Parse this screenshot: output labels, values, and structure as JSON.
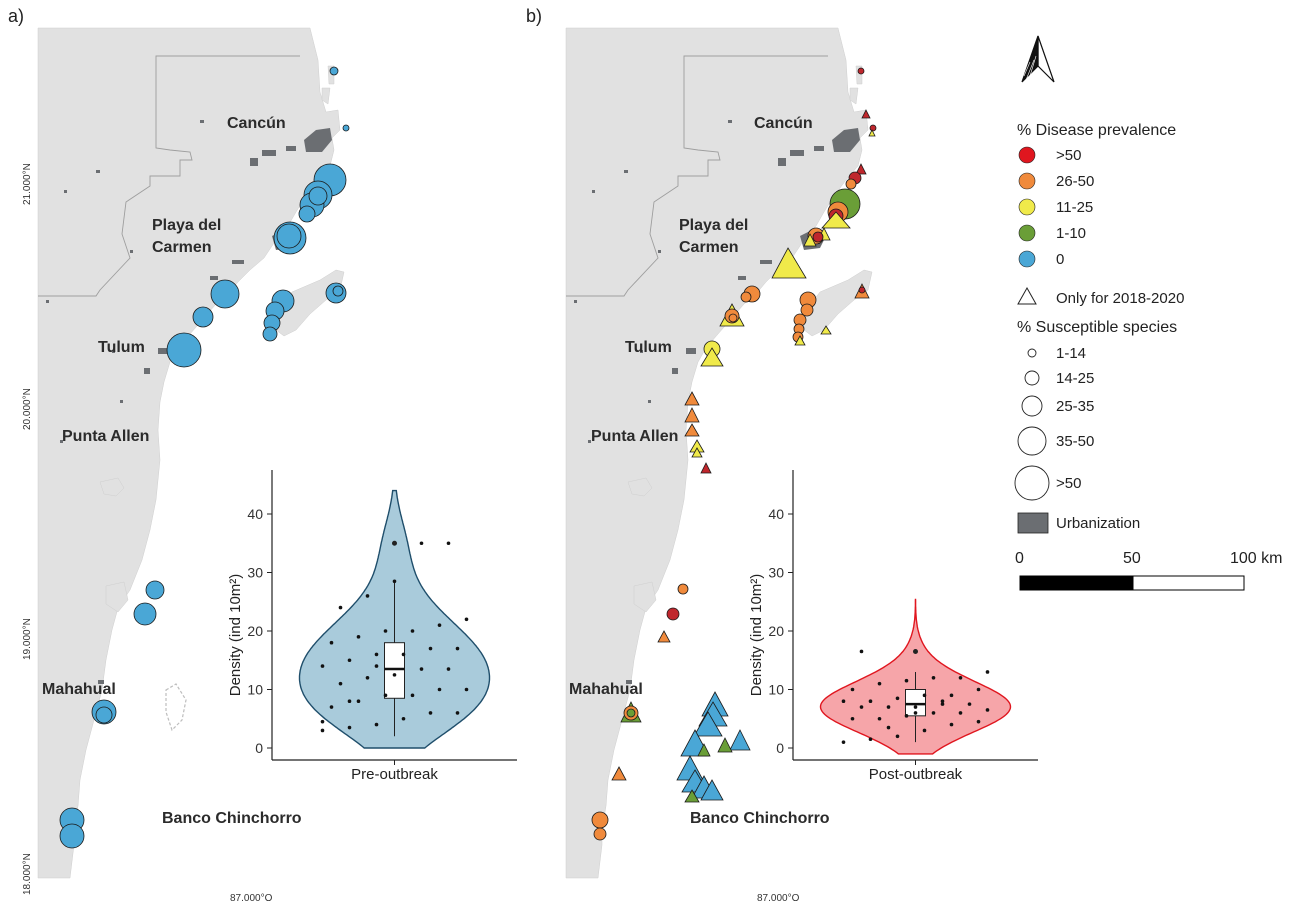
{
  "panels": {
    "a": {
      "label": "a)",
      "cities": [
        "Cancún",
        "Playa del",
        "Carmen",
        "Tulum",
        "Punta Allen",
        "Mahahual",
        "Banco Chinchorro"
      ],
      "lat_labels": [
        "21.000°N",
        "20.000°N",
        "19.000°N",
        "18.000°N"
      ],
      "lon_label": "87.000°O",
      "violin": {
        "category": "Pre-outbreak",
        "ylabel": "Density (ind 10m²)",
        "yticks": [
          "0",
          "10",
          "20",
          "30",
          "40"
        ],
        "ylim": [
          0,
          45
        ],
        "color": "#a9cbdb",
        "stroke": "#1f4e6b",
        "box": {
          "min": 2,
          "q1": 8.5,
          "median": 13.5,
          "q3": 18,
          "max": 28.5,
          "outlier": 35
        },
        "points": [
          3,
          3.5,
          4,
          5,
          6,
          6,
          7,
          8,
          9,
          9,
          10,
          10,
          11,
          12,
          12.5,
          13.5,
          13.5,
          14,
          15,
          16,
          16,
          17,
          17,
          18,
          19,
          20,
          20,
          21,
          22,
          24,
          26,
          28.5,
          35,
          35,
          4.5,
          8,
          14
        ]
      }
    },
    "b": {
      "label": "b)",
      "cities": [
        "Cancún",
        "Playa del",
        "Carmen",
        "Tulum",
        "Punta Allen",
        "Mahahual",
        "Banco Chinchorro"
      ],
      "lon_label": "87.000°O",
      "violin": {
        "category": "Post-outbreak",
        "ylabel": "Density (ind 10m²)",
        "yticks": [
          "0",
          "10",
          "20",
          "30",
          "40"
        ],
        "ylim": [
          0,
          45
        ],
        "color": "#f6a5a9",
        "stroke": "#e0161f",
        "box": {
          "min": 1,
          "q1": 5.5,
          "median": 7.5,
          "q3": 10,
          "max": 13,
          "outlier": 16.5
        },
        "points": [
          1,
          1.5,
          2,
          3,
          4,
          4.5,
          5,
          5,
          5.5,
          6,
          6,
          6.5,
          7,
          7,
          7,
          7.5,
          7.5,
          8,
          8,
          8.5,
          9,
          9,
          10,
          10,
          11,
          11.5,
          12,
          12,
          13,
          16.5,
          3.5,
          6,
          8
        ]
      }
    }
  },
  "legend": {
    "prevalence_title": "% Disease prevalence",
    "prevalence": [
      {
        "label": ">50",
        "color": "#e0161f"
      },
      {
        "label": "26-50",
        "color": "#f08a3c"
      },
      {
        "label": "11-25",
        "color": "#f0ea4a"
      },
      {
        "label": "1-10",
        "color": "#6a9e37"
      },
      {
        "label": "0",
        "color": "#4aa7d6"
      }
    ],
    "triangle_label": "Only for 2018-2020",
    "susceptible_title": "% Susceptible species",
    "susceptible": [
      "1-14",
      "14-25",
      "25-35",
      "35-50",
      ">50"
    ],
    "urbanization_label": "Urbanization",
    "urbanization_color": "#6b6e72"
  },
  "scalebar": {
    "labels": [
      "0",
      "50",
      "100 km"
    ]
  },
  "map_colors": {
    "land": "#e1e1e1",
    "border": "#9e9e9e",
    "sea": "#ffffff"
  }
}
